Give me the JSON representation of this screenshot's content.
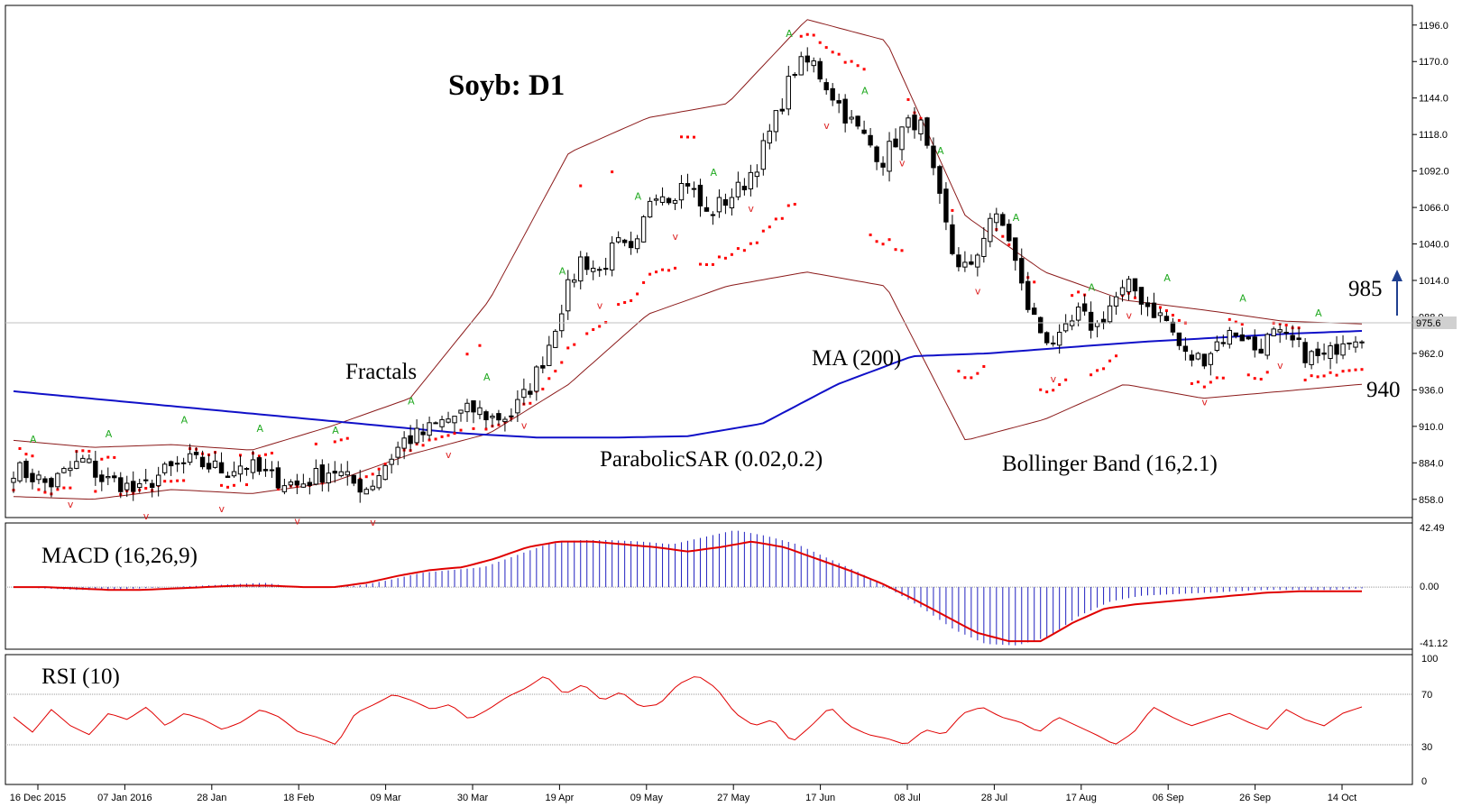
{
  "chart_data": {
    "type": "candlestick",
    "title": "Soyb: D1",
    "price_axis": {
      "ticks": [
        "1196.0",
        "1170.0",
        "1144.0",
        "1118.0",
        "1092.0",
        "1066.0",
        "1040.0",
        "1014.0",
        "988.0",
        "962.0",
        "936.0",
        "910.0",
        "884.0",
        "858.0"
      ],
      "current_price_label": "975.6",
      "ylim": [
        845,
        1210
      ]
    },
    "date_axis": {
      "ticks": [
        "16 Dec 2015",
        "07 Jan 2016",
        "28 Jan",
        "18 Feb",
        "09 Mar",
        "30 Mar",
        "19 Apr",
        "09 May",
        "27 May",
        "17 Jun",
        "08 Jul",
        "28 Jul",
        "17 Aug",
        "06 Sep",
        "26 Sep",
        "14 Oct"
      ]
    },
    "annotations": {
      "fractals": "Fractals",
      "ma": "MA (200)",
      "sar": "ParabolicSAR (0.02,0.2)",
      "bollinger": "Bollinger Band (16,2.1)",
      "target_up": "985",
      "target_down": "940"
    },
    "close_approx": [
      880,
      875,
      868,
      878,
      886,
      872,
      870,
      862,
      874,
      880,
      885,
      882,
      878,
      884,
      876,
      872,
      868,
      874,
      880,
      870,
      866,
      884,
      900,
      904,
      912,
      918,
      922,
      916,
      918,
      935,
      962,
      1000,
      1030,
      1020,
      1040,
      1030,
      1080,
      1075,
      1085,
      1060,
      1070,
      1080,
      1100,
      1130,
      1165,
      1170,
      1150,
      1130,
      1115,
      1100,
      1120,
      1130,
      1080,
      1030,
      1020,
      1060,
      1050,
      1000,
      975,
      970,
      990,
      980,
      1000,
      1010,
      995,
      985,
      960,
      958,
      972,
      978,
      965,
      975,
      970,
      960,
      958,
      975,
      976
    ],
    "ma200": [
      935,
      930,
      925,
      920,
      915,
      910,
      905,
      902,
      902,
      903,
      912,
      940,
      960,
      962,
      966,
      970,
      973,
      976,
      978
    ],
    "bollinger_upper": [
      900,
      895,
      897,
      893,
      910,
      930,
      1000,
      1105,
      1130,
      1140,
      1200,
      1185,
      1060,
      1020,
      1000,
      993,
      985,
      983
    ],
    "bollinger_lower": [
      860,
      858,
      865,
      862,
      870,
      890,
      905,
      940,
      990,
      1010,
      1020,
      1010,
      900,
      915,
      940,
      930,
      935,
      940
    ],
    "macd": {
      "title": "MACD (16,26,9)",
      "ticks": [
        "42.49",
        "0.00",
        "-41.12"
      ],
      "ylim": [
        -41.12,
        42.49
      ],
      "histogram": [
        0,
        -1,
        -2,
        -2,
        -1,
        0,
        1,
        2,
        3,
        0,
        0,
        1,
        5,
        10,
        12,
        14,
        22,
        30,
        33,
        33,
        32,
        30,
        35,
        40,
        36,
        30,
        20,
        10,
        -2,
        -15,
        -30,
        -40,
        -41,
        -35,
        -20,
        -10,
        -6,
        -5,
        -4,
        -3,
        -2,
        -2,
        -2,
        -1
      ],
      "signal": [
        0,
        0,
        -1,
        -2,
        -2,
        -1,
        0,
        1,
        1,
        0,
        0,
        3,
        8,
        12,
        14,
        20,
        28,
        32,
        32,
        30,
        28,
        25,
        28,
        32,
        28,
        20,
        12,
        3,
        -8,
        -20,
        -32,
        -38,
        -38,
        -25,
        -15,
        -12,
        -10,
        -8,
        -6,
        -4,
        -3,
        -3,
        -3
      ]
    },
    "rsi": {
      "title": "RSI (10)",
      "ticks": [
        "100",
        "70",
        "30",
        "0"
      ],
      "ylim": [
        0,
        100
      ],
      "values": [
        52,
        40,
        58,
        45,
        38,
        55,
        50,
        60,
        45,
        55,
        50,
        42,
        48,
        58,
        52,
        40,
        36,
        30,
        55,
        62,
        70,
        65,
        58,
        62,
        50,
        58,
        68,
        75,
        85,
        70,
        78,
        65,
        72,
        60,
        62,
        78,
        85,
        75,
        55,
        45,
        50,
        32,
        45,
        60,
        45,
        38,
        35,
        30,
        42,
        38,
        55,
        60,
        52,
        48,
        40,
        52,
        45,
        38,
        30,
        40,
        60,
        52,
        45,
        50,
        55,
        48,
        42,
        58,
        50,
        45,
        55,
        60
      ]
    }
  }
}
